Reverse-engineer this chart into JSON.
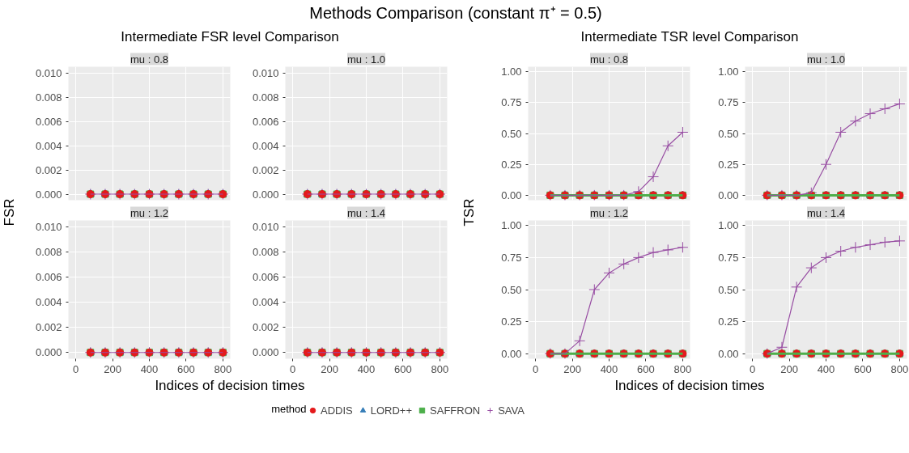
{
  "chart_data": [
    {
      "type": "line",
      "title": "mu : 0.8",
      "annotations": [
        "Methods Comparison (constant π⁺ = 0.5)",
        "Intermediate FSR level Comparison"
      ],
      "ylabel": "FSR",
      "x": [
        80,
        160,
        240,
        320,
        400,
        480,
        560,
        640,
        720,
        800
      ],
      "xlim": [
        -40,
        840
      ],
      "xticks": [
        0,
        200,
        400,
        600,
        800
      ],
      "ylim": [
        -0.0005,
        0.0105
      ],
      "yticks": [
        {
          "value": 0,
          "label": "0.000"
        },
        0.002,
        0.004,
        0.006,
        0.008,
        {
          "value": 0.01,
          "label": "0.010"
        }
      ],
      "tick_labels": "y",
      "grid": true,
      "series": [
        {
          "type": "scatter",
          "color": "#e41a1c",
          "marker": "circle",
          "values": [
            0,
            0,
            0,
            0,
            0,
            0,
            0,
            0,
            0,
            0
          ]
        },
        {
          "type": "scatter",
          "color": "#377eb8",
          "marker": "triangle",
          "values": [
            0,
            0,
            0,
            0,
            0,
            0,
            0,
            0,
            0,
            0
          ]
        },
        {
          "type": "scatter",
          "color": "#4daf4a",
          "marker": "square",
          "values": [
            0,
            0,
            0,
            0,
            0,
            0,
            0,
            0,
            0,
            0
          ]
        },
        {
          "color": "#984ea3",
          "marker": "cross",
          "values": [
            0,
            0,
            0,
            0,
            0,
            0,
            0,
            0,
            0,
            0
          ]
        }
      ]
    },
    {
      "type": "line",
      "title": "mu : 1.0",
      "x": [
        80,
        160,
        240,
        320,
        400,
        480,
        560,
        640,
        720,
        800
      ],
      "xlim": [
        -40,
        840
      ],
      "xticks": [
        0,
        200,
        400,
        600,
        800
      ],
      "ylim": [
        -0.0005,
        0.0105
      ],
      "yticks": [
        {
          "value": 0,
          "label": "0.000"
        },
        0.002,
        0.004,
        0.006,
        0.008,
        {
          "value": 0.01,
          "label": "0.010"
        }
      ],
      "tick_labels": "y",
      "grid": true,
      "series": [
        {
          "type": "scatter",
          "color": "#e41a1c",
          "marker": "circle",
          "values": [
            0,
            0,
            0,
            0,
            0,
            0,
            0,
            0,
            0,
            0
          ]
        },
        {
          "type": "scatter",
          "color": "#377eb8",
          "marker": "triangle",
          "values": [
            0,
            0,
            0,
            0,
            0,
            0,
            0,
            0,
            0,
            0
          ]
        },
        {
          "type": "scatter",
          "color": "#4daf4a",
          "marker": "square",
          "values": [
            0,
            0,
            0,
            0,
            0,
            0,
            0,
            0,
            0,
            0
          ]
        },
        {
          "color": "#984ea3",
          "marker": "cross",
          "values": [
            0,
            0,
            0,
            0,
            0,
            0,
            0,
            0,
            0,
            0
          ]
        }
      ]
    },
    {
      "type": "line",
      "title": "mu : 1.2",
      "xlabel": "Indices of decision times",
      "x": [
        80,
        160,
        240,
        320,
        400,
        480,
        560,
        640,
        720,
        800
      ],
      "xlim": [
        -40,
        840
      ],
      "xticks": [
        0,
        200,
        400,
        600,
        800
      ],
      "ylim": [
        -0.0005,
        0.0105
      ],
      "yticks": [
        {
          "value": 0,
          "label": "0.000"
        },
        0.002,
        0.004,
        0.006,
        0.008,
        {
          "value": 0.01,
          "label": "0.010"
        }
      ],
      "grid": true,
      "series": [
        {
          "type": "scatter",
          "color": "#e41a1c",
          "marker": "circle",
          "values": [
            0,
            0,
            0,
            0,
            0,
            0,
            0,
            0,
            0,
            0
          ]
        },
        {
          "type": "scatter",
          "color": "#377eb8",
          "marker": "triangle",
          "values": [
            0,
            0,
            0,
            0,
            0,
            0,
            0,
            0,
            0,
            0
          ]
        },
        {
          "type": "scatter",
          "color": "#4daf4a",
          "marker": "square",
          "values": [
            0,
            0,
            0,
            0,
            0,
            0,
            0,
            0,
            0,
            0
          ]
        },
        {
          "color": "#984ea3",
          "marker": "cross",
          "values": [
            0,
            0,
            0,
            0,
            0,
            0,
            0,
            0,
            0,
            0
          ]
        }
      ]
    },
    {
      "type": "line",
      "title": "mu : 1.4",
      "x": [
        80,
        160,
        240,
        320,
        400,
        480,
        560,
        640,
        720,
        800
      ],
      "xlim": [
        -40,
        840
      ],
      "xticks": [
        0,
        200,
        400,
        600,
        800
      ],
      "ylim": [
        -0.0005,
        0.0105
      ],
      "yticks": [
        {
          "value": 0,
          "label": "0.000"
        },
        0.002,
        0.004,
        0.006,
        0.008,
        {
          "value": 0.01,
          "label": "0.010"
        }
      ],
      "grid": true,
      "series": [
        {
          "type": "scatter",
          "color": "#e41a1c",
          "marker": "circle",
          "values": [
            0,
            0,
            0,
            0,
            0,
            0,
            0,
            0,
            0,
            0
          ]
        },
        {
          "type": "scatter",
          "color": "#377eb8",
          "marker": "triangle",
          "values": [
            0,
            0,
            0,
            0,
            0,
            0,
            0,
            0,
            0,
            0
          ]
        },
        {
          "type": "scatter",
          "color": "#4daf4a",
          "marker": "square",
          "values": [
            0,
            0,
            0,
            0,
            0,
            0,
            0,
            0,
            0,
            0
          ]
        },
        {
          "color": "#984ea3",
          "marker": "cross",
          "values": [
            0,
            0,
            0,
            0,
            0,
            0,
            0,
            0,
            0,
            0
          ]
        }
      ]
    },
    {
      "type": "line",
      "title": "mu : 0.8",
      "annotations": [
        "Intermediate TSR level Comparison"
      ],
      "ylabel": "TSR",
      "x": [
        80,
        160,
        240,
        320,
        400,
        480,
        560,
        640,
        720,
        800
      ],
      "xlim": [
        -40,
        840
      ],
      "xticks": [
        0,
        200,
        400,
        600,
        800
      ],
      "ylim": [
        -0.04,
        1.04
      ],
      "yticks": [
        {
          "value": 0,
          "label": "0.00"
        },
        0.25,
        {
          "value": 0.5,
          "label": "0.50"
        },
        0.75,
        {
          "value": 1,
          "label": "1.00"
        }
      ],
      "tick_labels": "y",
      "grid": true,
      "series": [
        {
          "type": "scatter",
          "color": "#e41a1c",
          "marker": "circle",
          "values": [
            0,
            0,
            0,
            0,
            0,
            0,
            0,
            0,
            0,
            0
          ]
        },
        {
          "type": "scatter",
          "color": "#377eb8",
          "marker": "triangle",
          "values": [
            0,
            0,
            0,
            0,
            0,
            0,
            0,
            0,
            0,
            0
          ]
        },
        {
          "color": "#4daf4a",
          "marker": "square",
          "values": [
            0,
            0,
            0,
            0,
            0,
            0,
            0,
            0,
            0,
            0
          ]
        },
        {
          "color": "#984ea3",
          "marker": "cross",
          "values": [
            0,
            0,
            0,
            0,
            0,
            0,
            0.03,
            0.15,
            0.4,
            0.51
          ]
        }
      ]
    },
    {
      "type": "line",
      "title": "mu : 1.0",
      "x": [
        80,
        160,
        240,
        320,
        400,
        480,
        560,
        640,
        720,
        800
      ],
      "xlim": [
        -40,
        840
      ],
      "xticks": [
        0,
        200,
        400,
        600,
        800
      ],
      "ylim": [
        -0.04,
        1.04
      ],
      "yticks": [
        {
          "value": 0,
          "label": "0.00"
        },
        0.25,
        {
          "value": 0.5,
          "label": "0.50"
        },
        0.75,
        {
          "value": 1,
          "label": "1.00"
        }
      ],
      "tick_labels": "y",
      "grid": true,
      "series": [
        {
          "type": "scatter",
          "color": "#e41a1c",
          "marker": "circle",
          "values": [
            0,
            0,
            0,
            0,
            0,
            0,
            0,
            0,
            0,
            0
          ]
        },
        {
          "type": "scatter",
          "color": "#377eb8",
          "marker": "triangle",
          "values": [
            0,
            0,
            0,
            0,
            0,
            0,
            0,
            0,
            0,
            0
          ]
        },
        {
          "color": "#4daf4a",
          "marker": "square",
          "values": [
            0,
            0,
            0,
            0,
            0,
            0,
            0,
            0,
            0,
            0
          ]
        },
        {
          "color": "#984ea3",
          "marker": "cross",
          "values": [
            0,
            0,
            0,
            0.02,
            0.25,
            0.51,
            0.6,
            0.66,
            0.7,
            0.74
          ]
        }
      ]
    },
    {
      "type": "line",
      "title": "mu : 1.2",
      "xlabel": "Indices of decision times",
      "x": [
        80,
        160,
        240,
        320,
        400,
        480,
        560,
        640,
        720,
        800
      ],
      "xlim": [
        -40,
        840
      ],
      "xticks": [
        0,
        200,
        400,
        600,
        800
      ],
      "ylim": [
        -0.04,
        1.04
      ],
      "yticks": [
        {
          "value": 0,
          "label": "0.00"
        },
        0.25,
        {
          "value": 0.5,
          "label": "0.50"
        },
        0.75,
        {
          "value": 1,
          "label": "1.00"
        }
      ],
      "grid": true,
      "series": [
        {
          "type": "scatter",
          "color": "#e41a1c",
          "marker": "circle",
          "values": [
            0,
            0,
            0,
            0,
            0,
            0,
            0,
            0,
            0,
            0
          ]
        },
        {
          "type": "scatter",
          "color": "#377eb8",
          "marker": "triangle",
          "values": [
            0,
            0,
            0,
            0,
            0,
            0,
            0,
            0,
            0,
            0
          ]
        },
        {
          "color": "#4daf4a",
          "marker": "square",
          "values": [
            0,
            0,
            0,
            0,
            0,
            0,
            0,
            0,
            0,
            0
          ]
        },
        {
          "color": "#984ea3",
          "marker": "cross",
          "values": [
            0,
            0,
            0.1,
            0.5,
            0.63,
            0.7,
            0.75,
            0.79,
            0.81,
            0.83
          ]
        }
      ]
    },
    {
      "type": "line",
      "title": "mu : 1.4",
      "legend": "bottom",
      "legend_title": "method",
      "x": [
        80,
        160,
        240,
        320,
        400,
        480,
        560,
        640,
        720,
        800
      ],
      "xlim": [
        -40,
        840
      ],
      "xticks": [
        0,
        200,
        400,
        600,
        800
      ],
      "ylim": [
        -0.04,
        1.04
      ],
      "yticks": [
        {
          "value": 0,
          "label": "0.00"
        },
        0.25,
        {
          "value": 0.5,
          "label": "0.50"
        },
        0.75,
        {
          "value": 1,
          "label": "1.00"
        }
      ],
      "grid": true,
      "series": [
        {
          "name": "ADDIS",
          "type": "scatter",
          "color": "#e41a1c",
          "marker": "circle",
          "values": [
            0,
            0,
            0,
            0,
            0,
            0,
            0,
            0,
            0,
            0
          ]
        },
        {
          "name": "LORD++",
          "type": "scatter",
          "color": "#377eb8",
          "marker": "triangle",
          "values": [
            0,
            0,
            0,
            0,
            0,
            0,
            0,
            0,
            0,
            0
          ]
        },
        {
          "name": "SAFFRON",
          "color": "#4daf4a",
          "marker": "square",
          "values": [
            0,
            0,
            0,
            0,
            0,
            0,
            0,
            0,
            0,
            0
          ]
        },
        {
          "name": "SAVA",
          "color": "#984ea3",
          "marker": "cross",
          "values": [
            0,
            0.05,
            0.52,
            0.67,
            0.75,
            0.8,
            0.83,
            0.85,
            0.87,
            0.88
          ]
        }
      ]
    }
  ]
}
